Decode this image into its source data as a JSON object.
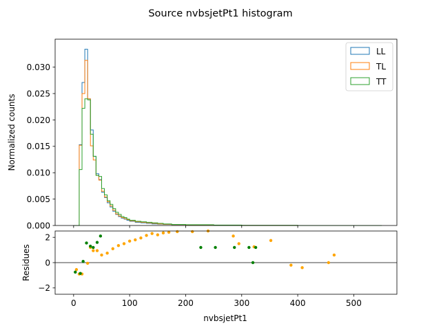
{
  "figure": {
    "title": "Source nvbsjetPt1 histogram"
  },
  "chart_data": [
    {
      "type": "histogram",
      "panel": "top",
      "xlim": [
        -33,
        577
      ],
      "ylim": [
        0,
        0.0353
      ],
      "ylabel": "Normalized counts",
      "yticks": [
        0.0,
        0.005,
        0.01,
        0.015,
        0.02,
        0.025,
        0.03
      ],
      "ytick_labels": [
        "0.000",
        "0.005",
        "0.010",
        "0.015",
        "0.020",
        "0.025",
        "0.030"
      ],
      "legend": {
        "placement": "top-right"
      },
      "bin_edges": [
        0,
        10,
        15,
        20,
        25,
        30,
        35,
        40,
        45,
        50,
        55,
        60,
        65,
        70,
        75,
        80,
        85,
        90,
        95,
        100,
        110,
        120,
        130,
        140,
        150,
        160,
        175,
        200,
        250,
        300,
        400,
        550
      ],
      "series": [
        {
          "name": "LL",
          "color": "#1f77b4",
          "values": [
            0.0,
            0.0153,
            0.0271,
            0.0334,
            0.024,
            0.0181,
            0.0131,
            0.0098,
            0.0087,
            0.0063,
            0.0053,
            0.0043,
            0.0035,
            0.0027,
            0.0021,
            0.0017,
            0.0014,
            0.0012,
            0.001,
            0.0008,
            0.0006,
            0.0005,
            0.0004,
            0.0003,
            0.00025,
            0.0002,
            0.00015,
            0.0001,
            5e-05,
            2e-05,
            0.0
          ]
        },
        {
          "name": "TL",
          "color": "#ff7f0e",
          "values": [
            0.0,
            0.0152,
            0.025,
            0.0313,
            0.024,
            0.0151,
            0.0124,
            0.0095,
            0.0086,
            0.0065,
            0.0054,
            0.0045,
            0.0037,
            0.0029,
            0.0022,
            0.0018,
            0.0015,
            0.0013,
            0.0011,
            0.0009,
            0.0007,
            0.0006,
            0.0005,
            0.0004,
            0.0003,
            0.00022,
            0.00016,
            0.0001,
            5e-05,
            2e-05,
            0.0
          ]
        },
        {
          "name": "TT",
          "color": "#2ca02c",
          "values": [
            0.0,
            0.0106,
            0.0222,
            0.024,
            0.0238,
            0.0173,
            0.0131,
            0.0095,
            0.0093,
            0.007,
            0.0058,
            0.0047,
            0.004,
            0.0032,
            0.0025,
            0.0021,
            0.0017,
            0.0015,
            0.0012,
            0.001,
            0.0008,
            0.0007,
            0.0006,
            0.0005,
            0.0004,
            0.0003,
            0.0002,
            0.00015,
            8e-05,
            3e-05,
            0.0
          ]
        }
      ]
    },
    {
      "type": "scatter",
      "panel": "bottom",
      "xlim": [
        -33,
        577
      ],
      "ylim": [
        -2.5,
        2.5
      ],
      "xlabel": "nvbsjetPt1",
      "ylabel": "Residues",
      "xticks": [
        0,
        100,
        200,
        300,
        400,
        500
      ],
      "xtick_labels": [
        "0",
        "100",
        "200",
        "300",
        "400",
        "500"
      ],
      "yticks": [
        -2,
        0,
        2
      ],
      "ytick_labels": [
        "−2",
        "0",
        "2"
      ],
      "reference_line": 0,
      "series": [
        {
          "color": "#ffa500",
          "x": [
            5,
            10,
            15,
            25,
            30,
            35,
            42,
            50,
            60,
            70,
            80,
            90,
            100,
            110,
            120,
            130,
            140,
            150,
            160,
            170,
            185,
            212,
            240,
            285,
            295,
            322,
            352,
            388,
            408,
            455,
            465
          ],
          "y": [
            -0.55,
            -0.9,
            -0.9,
            -0.05,
            1.2,
            0.95,
            0.95,
            0.6,
            0.75,
            1.1,
            1.35,
            1.5,
            1.7,
            1.8,
            1.95,
            2.15,
            2.3,
            2.2,
            2.35,
            2.4,
            2.45,
            2.45,
            2.5,
            2.1,
            1.5,
            1.25,
            1.75,
            -0.2,
            -0.4,
            0.0,
            0.6
          ]
        },
        {
          "color": "#008000",
          "x": [
            3,
            12,
            17,
            23,
            30,
            35,
            42,
            48,
            227,
            253,
            287,
            313,
            320,
            325
          ],
          "y": [
            -0.75,
            -0.85,
            0.1,
            1.55,
            1.3,
            1.2,
            1.6,
            2.1,
            1.2,
            1.2,
            1.2,
            1.2,
            0.0,
            1.2
          ]
        }
      ]
    }
  ]
}
